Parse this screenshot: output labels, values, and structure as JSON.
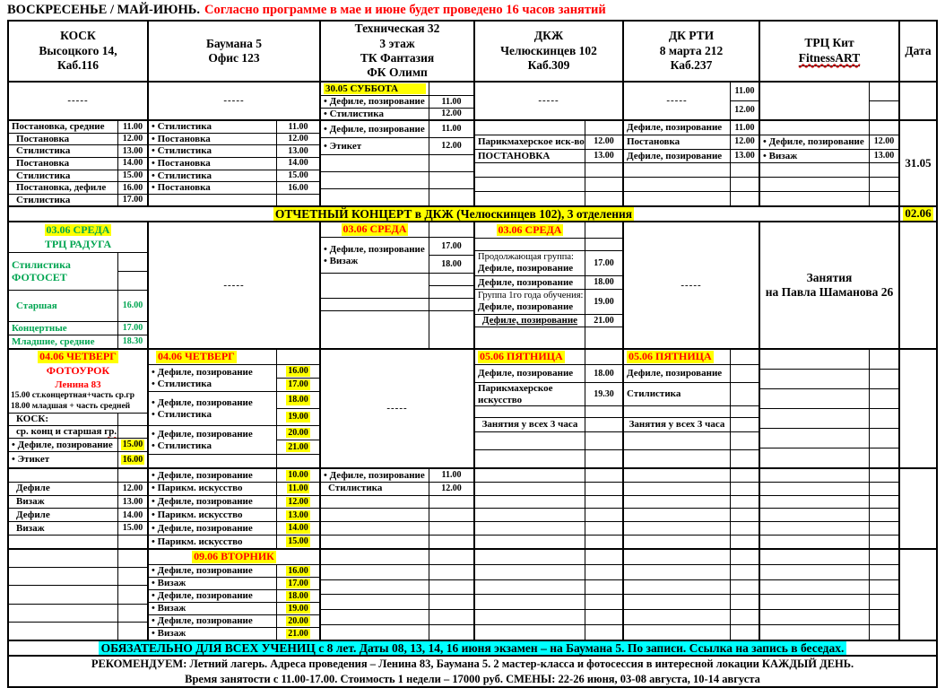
{
  "colors": {
    "highlight_yellow": "#FFFF00",
    "highlight_cyan": "#00FFFF",
    "accent_red": "#FF0000",
    "accent_green": "#00A551"
  },
  "title": {
    "weekday": "ВОСКРЕСЕНЬЕ / МАЙ-ИЮНЬ.",
    "warning": "Согласно программе в мае и июне будет проведено 16 часов занятий"
  },
  "header": {
    "c1": [
      "КОСК",
      "Высоцкого 14,",
      "Каб.116"
    ],
    "c2": [
      "Баумана 5",
      "Офис 123"
    ],
    "c3": [
      "Техническая 32",
      "3 этаж",
      "ТК Фантазия",
      "ФК Олимп"
    ],
    "c4": [
      "ДКЖ",
      "Челюскинцев 102",
      "Каб.309"
    ],
    "c5": [
      "ДК РТИ",
      "8 марта 212",
      "Каб.237"
    ],
    "c6": [
      "ТРЦ Кит",
      "FitnessART"
    ],
    "c7": "Дата"
  },
  "bandA": {
    "c1": "-----",
    "c2": "-----",
    "c3": {
      "day": "30.05 СУББОТА",
      "r1": "• Дефиле, позирование",
      "t1": "11.00",
      "r2": "• Стилистика",
      "t2": "12.00"
    },
    "c4": "-----",
    "c5": {
      "dash": "-----",
      "t1": "11.00",
      "t2": "12.00"
    }
  },
  "bandB": {
    "date": "31.05",
    "c1": [
      [
        "Постановка, средние",
        "11.00"
      ],
      [
        "Постановка",
        "12.00"
      ],
      [
        "Стилистика",
        "13.00"
      ],
      [
        "Постановка",
        "14.00"
      ],
      [
        "Стилистика",
        "15.00"
      ],
      [
        "Постановка, дефиле",
        "16.00"
      ],
      [
        "Стилистика",
        "17.00"
      ]
    ],
    "c2": [
      [
        "• Стилистика",
        "11.00"
      ],
      [
        "• Постановка",
        "12.00"
      ],
      [
        "• Стилистика",
        "13.00"
      ],
      [
        "• Постановка",
        "14.00"
      ],
      [
        "• Стилистика",
        "15.00"
      ],
      [
        "• Постановка",
        "16.00"
      ]
    ],
    "c3": [
      [
        "• Дефиле, позирование",
        "11.00"
      ],
      [
        "• Этикет",
        "12.00"
      ]
    ],
    "c4": [
      [
        "Парикмахерское иск-во",
        "12.00"
      ],
      [
        "ПОСТАНОВКА",
        "13.00"
      ]
    ],
    "c5": [
      [
        "Дефиле, позирование",
        "11.00"
      ],
      [
        "Постановка",
        "12.00"
      ],
      [
        "Дефиле, позирование",
        "13.00"
      ]
    ],
    "c6": [
      [
        "• Дефиле, позирование",
        "12.00"
      ],
      [
        "• Визаж",
        "13.00"
      ]
    ]
  },
  "bandC": {
    "text": "ОТЧЕТНЫЙ КОНЦЕРТ в ДКЖ (Челюскинцев 102), 3 отделения",
    "date": "02.06"
  },
  "bandD": {
    "c1": {
      "day": "03.06 СРЕДА",
      "venue": "ТРЦ РАДУГА",
      "l1": "Стилистика",
      "l2": "ФОТОСЕТ",
      "rows": [
        [
          "Старшая",
          "16.00"
        ],
        [
          "Концертные",
          "17.00"
        ],
        [
          "Младшие, средние",
          "18.30"
        ]
      ]
    },
    "c2": "-----",
    "c3": {
      "day": "03.06 СРЕДА",
      "l1": "• Дефиле, позирование",
      "l2": "• Визаж",
      "t1": "17.00",
      "t2": "18.00"
    },
    "c4": {
      "day": "03.06 СРЕДА",
      "g1a": "Продолжающая группа:",
      "g1b": "Дефиле, позирование",
      "t1": "17.00",
      "r2": "Дефиле, позирование",
      "t2": "18.00",
      "g2a": "Группа 1го года обучения:",
      "g2b": "Дефиле, позирование",
      "t3": "19.00",
      "r4": "Дефиле, позирование",
      "t4": "21.00"
    },
    "c5": "-----",
    "c6": {
      "l1": "Занятия",
      "l2": "на Павла Шаманова 26"
    }
  },
  "bandE": {
    "c1": {
      "day": "04.06 ЧЕТВЕРГ",
      "sub1": "ФОТОУРОК",
      "sub2": "Ленина 83",
      "note1": "15.00 ст.концертная+часть ср.гр",
      "note2": "18.00 младшая + часть средней",
      "kosk": "КОСК:",
      "group_a": "ср. конц и старшая ",
      "group_b": "гр.",
      "r1": "• Дефиле, позирование",
      "t1": "15.00",
      "r2": "• Этикет",
      "t2": "16.00"
    },
    "c2": {
      "day": "04.06 ЧЕТВЕРГ",
      "pairs": [
        {
          "a": "• Дефиле, позирование",
          "b": "• Стилистика",
          "t1": "16.00",
          "t2": "17.00"
        },
        {
          "a": "• Дефиле, позирование",
          "b": "• Стилистика",
          "t1": "18.00",
          "t2": "19.00"
        },
        {
          "a": "• Дефиле, позирование",
          "b": "• Стилистика",
          "t1": "20.00",
          "t2": "21.00"
        }
      ]
    },
    "c3": "-----",
    "c4": {
      "day": "05.06 ПЯТНИЦА",
      "r1": "Дефиле, позирование",
      "t1": "18.00",
      "r2a": "Парикмахерское",
      "r2b": "искусство",
      "t2": "19.30",
      "note": "Занятия у всех 3 часа"
    },
    "c5": {
      "day": "05.06 ПЯТНИЦА",
      "r1": "Дефиле, позирование",
      "r2": "Стилистика",
      "note": "Занятия у всех 3 часа"
    }
  },
  "bandF": {
    "c1": [
      [
        "Дефиле",
        "12.00"
      ],
      [
        "Визаж",
        "13.00"
      ],
      [
        "Дефиле",
        "14.00"
      ],
      [
        "Визаж",
        "15.00"
      ]
    ],
    "c2": [
      [
        "• Дефиле, позирование",
        "10.00"
      ],
      [
        "• Парикм. искусство",
        "11.00"
      ],
      [
        "• Дефиле, позирование",
        "12.00"
      ],
      [
        "• Парикм. искусство",
        "13.00"
      ],
      [
        "• Дефиле, позирование",
        "14.00"
      ],
      [
        "• Парикм. искусство",
        "15.00"
      ]
    ],
    "c3": [
      [
        "• Дефиле, позирование",
        "11.00"
      ],
      [
        "Стилистика",
        "12.00"
      ]
    ]
  },
  "bandG": {
    "c2": {
      "day": "09.06 ВТОРНИК",
      "rows": [
        [
          "• Дефиле, позирование",
          "16.00"
        ],
        [
          "• Визаж",
          "17.00"
        ],
        [
          "• Дефиле, позирование",
          "18.00"
        ],
        [
          "• Визаж",
          "19.00"
        ],
        [
          "• Дефиле, позирование",
          "20.00"
        ],
        [
          "• Визаж",
          "21.00"
        ]
      ]
    }
  },
  "bandH": {
    "text": "ОБЯЗАТЕЛЬНО ДЛЯ ВСЕХ УЧЕНИЦ с 8 лет. Даты 08, 13, 14, 16 июня экзамен – на Баумана 5. По записи. Ссылка на запись в беседах."
  },
  "bandI": {
    "line1": "РЕКОМЕНДУЕМ: Летний лагерь. Адреса проведения – Ленина 83, Баумана 5. 2 мастер-класса и фотосессия в интересной локации КАЖДЫЙ ДЕНЬ.",
    "line2": "Время занятости с 11.00-17.00. Стоимость 1 недели – 17000 руб. СМЕНЫ: 22-26 июня, 03-08 августа, 10-14 августа"
  }
}
